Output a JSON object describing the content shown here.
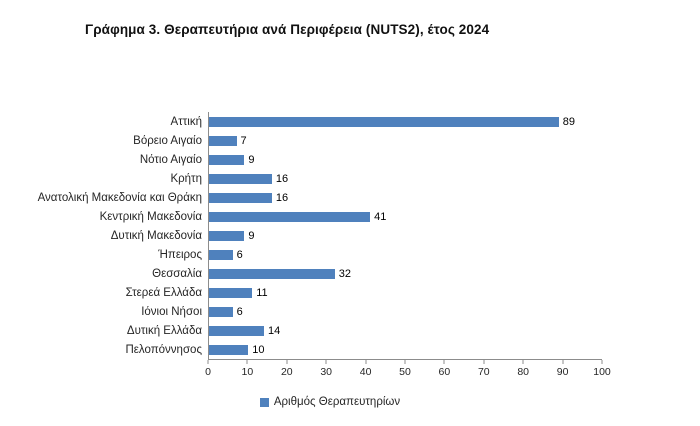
{
  "title": "Γράφημα 3. Θεραπευτήρια ανά Περιφέρεια (NUTS2), έτος 2024",
  "legend": {
    "label": "Αριθμός Θεραπευτηρίων",
    "swatch_color": "#4F81BD"
  },
  "chart_data": {
    "type": "bar",
    "orientation": "horizontal",
    "title": "Γράφημα 3. Θεραπευτήρια ανά Περιφέρεια (NUTS2), έτος 2024",
    "categories": [
      "Αττική",
      "Βόρειο Αιγαίο",
      "Νότιο Αιγαίο",
      "Κρήτη",
      "Ανατολική Μακεδονία και Θράκη",
      "Κεντρική Μακεδονία",
      "Δυτική Μακεδονία",
      "Ήπειρος",
      "Θεσσαλία",
      "Στερεά Ελλάδα",
      "Ιόνιοι Νήσοι",
      "Δυτική Ελλάδα",
      "Πελοπόννησος"
    ],
    "values": [
      89,
      7,
      9,
      16,
      16,
      41,
      9,
      6,
      32,
      11,
      6,
      14,
      10
    ],
    "xlabel": "",
    "ylabel": "",
    "xlim": [
      0,
      100
    ],
    "xticks": [
      0,
      10,
      20,
      30,
      40,
      50,
      60,
      70,
      80,
      90,
      100
    ],
    "bar_color": "#4F81BD",
    "grid": false,
    "legend_position": "bottom",
    "legend_entries": [
      "Αριθμός Θεραπευτηρίων"
    ]
  }
}
